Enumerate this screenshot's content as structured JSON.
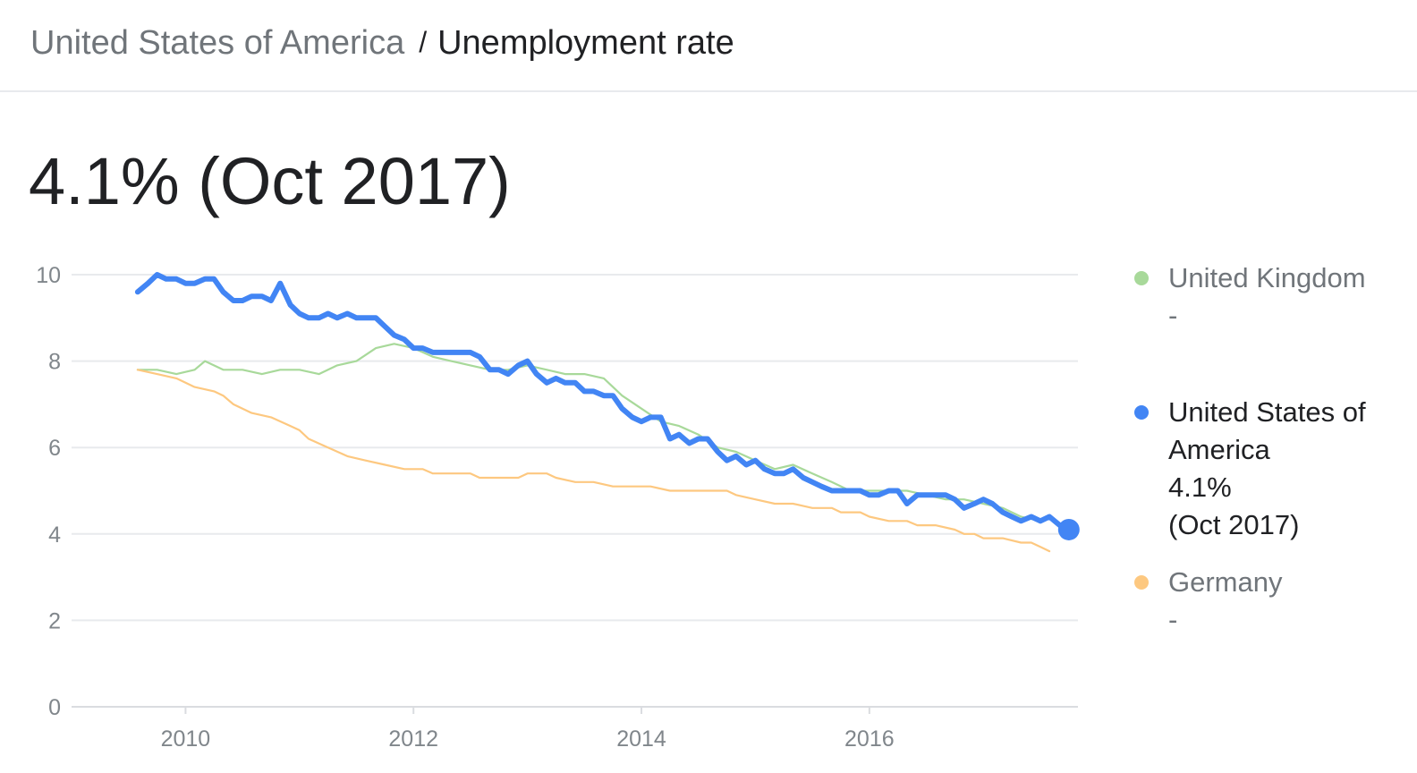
{
  "breadcrumb": {
    "parent": "United States of America",
    "separator": "/",
    "current": "Unemployment rate"
  },
  "headline": {
    "value": "4.1%",
    "date": "(Oct 2017)"
  },
  "legend": [
    {
      "name": "United Kingdom",
      "value": "-",
      "date": "",
      "color": "#a8d99a",
      "active": false
    },
    {
      "name": "United States of America",
      "value": "4.1%",
      "date": "(Oct 2017)",
      "color": "#4285f4",
      "active": true
    },
    {
      "name": "Germany",
      "value": "-",
      "date": "",
      "color": "#fdc880",
      "active": false
    }
  ],
  "chart_data": {
    "type": "line",
    "xlim": [
      2009.0,
      2017.83
    ],
    "ylim": [
      0,
      10
    ],
    "y_ticks": [
      0,
      2,
      4,
      6,
      8,
      10
    ],
    "x_ticks": [
      2010,
      2012,
      2014,
      2016
    ],
    "grid": true,
    "legend_position": "right",
    "colors": {
      "grid": "#e8eaed",
      "axis": "#dadce0",
      "tick_text": "#80868b"
    },
    "series": [
      {
        "name": "United Kingdom",
        "color": "#a8d99a",
        "points": [
          [
            2009.58,
            7.8
          ],
          [
            2009.75,
            7.8
          ],
          [
            2009.92,
            7.7
          ],
          [
            2010.08,
            7.8
          ],
          [
            2010.17,
            8.0
          ],
          [
            2010.33,
            7.8
          ],
          [
            2010.5,
            7.8
          ],
          [
            2010.67,
            7.7
          ],
          [
            2010.83,
            7.8
          ],
          [
            2011.0,
            7.8
          ],
          [
            2011.17,
            7.7
          ],
          [
            2011.33,
            7.9
          ],
          [
            2011.5,
            8.0
          ],
          [
            2011.67,
            8.3
          ],
          [
            2011.83,
            8.4
          ],
          [
            2012.0,
            8.3
          ],
          [
            2012.17,
            8.1
          ],
          [
            2012.33,
            8.0
          ],
          [
            2012.5,
            7.9
          ],
          [
            2012.67,
            7.8
          ],
          [
            2012.83,
            7.8
          ],
          [
            2013.0,
            7.9
          ],
          [
            2013.17,
            7.8
          ],
          [
            2013.33,
            7.7
          ],
          [
            2013.5,
            7.7
          ],
          [
            2013.67,
            7.6
          ],
          [
            2013.83,
            7.2
          ],
          [
            2014.0,
            6.9
          ],
          [
            2014.17,
            6.6
          ],
          [
            2014.33,
            6.5
          ],
          [
            2014.5,
            6.3
          ],
          [
            2014.67,
            6.0
          ],
          [
            2014.83,
            5.9
          ],
          [
            2015.0,
            5.7
          ],
          [
            2015.17,
            5.5
          ],
          [
            2015.33,
            5.6
          ],
          [
            2015.5,
            5.4
          ],
          [
            2015.67,
            5.2
          ],
          [
            2015.83,
            5.0
          ],
          [
            2016.0,
            5.0
          ],
          [
            2016.17,
            5.0
          ],
          [
            2016.33,
            5.0
          ],
          [
            2016.5,
            4.9
          ],
          [
            2016.67,
            4.8
          ],
          [
            2016.83,
            4.8
          ],
          [
            2017.0,
            4.7
          ],
          [
            2017.17,
            4.6
          ],
          [
            2017.33,
            4.4
          ],
          [
            2017.5,
            4.3
          ]
        ]
      },
      {
        "name": "United States of America",
        "color": "#4285f4",
        "points": [
          [
            2009.58,
            9.6
          ],
          [
            2009.67,
            9.8
          ],
          [
            2009.75,
            10.0
          ],
          [
            2009.83,
            9.9
          ],
          [
            2009.92,
            9.9
          ],
          [
            2010.0,
            9.8
          ],
          [
            2010.08,
            9.8
          ],
          [
            2010.17,
            9.9
          ],
          [
            2010.25,
            9.9
          ],
          [
            2010.33,
            9.6
          ],
          [
            2010.42,
            9.4
          ],
          [
            2010.5,
            9.4
          ],
          [
            2010.58,
            9.5
          ],
          [
            2010.67,
            9.5
          ],
          [
            2010.75,
            9.4
          ],
          [
            2010.83,
            9.8
          ],
          [
            2010.92,
            9.3
          ],
          [
            2011.0,
            9.1
          ],
          [
            2011.08,
            9.0
          ],
          [
            2011.17,
            9.0
          ],
          [
            2011.25,
            9.1
          ],
          [
            2011.33,
            9.0
          ],
          [
            2011.42,
            9.1
          ],
          [
            2011.5,
            9.0
          ],
          [
            2011.58,
            9.0
          ],
          [
            2011.67,
            9.0
          ],
          [
            2011.75,
            8.8
          ],
          [
            2011.83,
            8.6
          ],
          [
            2011.92,
            8.5
          ],
          [
            2012.0,
            8.3
          ],
          [
            2012.08,
            8.3
          ],
          [
            2012.17,
            8.2
          ],
          [
            2012.25,
            8.2
          ],
          [
            2012.33,
            8.2
          ],
          [
            2012.42,
            8.2
          ],
          [
            2012.5,
            8.2
          ],
          [
            2012.58,
            8.1
          ],
          [
            2012.67,
            7.8
          ],
          [
            2012.75,
            7.8
          ],
          [
            2012.83,
            7.7
          ],
          [
            2012.92,
            7.9
          ],
          [
            2013.0,
            8.0
          ],
          [
            2013.08,
            7.7
          ],
          [
            2013.17,
            7.5
          ],
          [
            2013.25,
            7.6
          ],
          [
            2013.33,
            7.5
          ],
          [
            2013.42,
            7.5
          ],
          [
            2013.5,
            7.3
          ],
          [
            2013.58,
            7.3
          ],
          [
            2013.67,
            7.2
          ],
          [
            2013.75,
            7.2
          ],
          [
            2013.83,
            6.9
          ],
          [
            2013.92,
            6.7
          ],
          [
            2014.0,
            6.6
          ],
          [
            2014.08,
            6.7
          ],
          [
            2014.17,
            6.7
          ],
          [
            2014.25,
            6.2
          ],
          [
            2014.33,
            6.3
          ],
          [
            2014.42,
            6.1
          ],
          [
            2014.5,
            6.2
          ],
          [
            2014.58,
            6.2
          ],
          [
            2014.67,
            5.9
          ],
          [
            2014.75,
            5.7
          ],
          [
            2014.83,
            5.8
          ],
          [
            2014.92,
            5.6
          ],
          [
            2015.0,
            5.7
          ],
          [
            2015.08,
            5.5
          ],
          [
            2015.17,
            5.4
          ],
          [
            2015.25,
            5.4
          ],
          [
            2015.33,
            5.5
          ],
          [
            2015.42,
            5.3
          ],
          [
            2015.5,
            5.2
          ],
          [
            2015.58,
            5.1
          ],
          [
            2015.67,
            5.0
          ],
          [
            2015.75,
            5.0
          ],
          [
            2015.83,
            5.0
          ],
          [
            2015.92,
            5.0
          ],
          [
            2016.0,
            4.9
          ],
          [
            2016.08,
            4.9
          ],
          [
            2016.17,
            5.0
          ],
          [
            2016.25,
            5.0
          ],
          [
            2016.33,
            4.7
          ],
          [
            2016.42,
            4.9
          ],
          [
            2016.5,
            4.9
          ],
          [
            2016.58,
            4.9
          ],
          [
            2016.67,
            4.9
          ],
          [
            2016.75,
            4.8
          ],
          [
            2016.83,
            4.6
          ],
          [
            2016.92,
            4.7
          ],
          [
            2017.0,
            4.8
          ],
          [
            2017.08,
            4.7
          ],
          [
            2017.17,
            4.5
          ],
          [
            2017.25,
            4.4
          ],
          [
            2017.33,
            4.3
          ],
          [
            2017.42,
            4.4
          ],
          [
            2017.5,
            4.3
          ],
          [
            2017.58,
            4.4
          ],
          [
            2017.67,
            4.2
          ],
          [
            2017.75,
            4.1
          ]
        ],
        "highlight": [
          2017.75,
          4.1
        ]
      },
      {
        "name": "Germany",
        "color": "#fdc880",
        "points": [
          [
            2009.58,
            7.8
          ],
          [
            2009.75,
            7.7
          ],
          [
            2009.92,
            7.6
          ],
          [
            2010.0,
            7.5
          ],
          [
            2010.08,
            7.4
          ],
          [
            2010.25,
            7.3
          ],
          [
            2010.33,
            7.2
          ],
          [
            2010.42,
            7.0
          ],
          [
            2010.58,
            6.8
          ],
          [
            2010.75,
            6.7
          ],
          [
            2010.92,
            6.5
          ],
          [
            2011.0,
            6.4
          ],
          [
            2011.08,
            6.2
          ],
          [
            2011.25,
            6.0
          ],
          [
            2011.42,
            5.8
          ],
          [
            2011.58,
            5.7
          ],
          [
            2011.75,
            5.6
          ],
          [
            2011.92,
            5.5
          ],
          [
            2012.08,
            5.5
          ],
          [
            2012.17,
            5.4
          ],
          [
            2012.33,
            5.4
          ],
          [
            2012.5,
            5.4
          ],
          [
            2012.58,
            5.3
          ],
          [
            2012.75,
            5.3
          ],
          [
            2012.92,
            5.3
          ],
          [
            2013.0,
            5.4
          ],
          [
            2013.17,
            5.4
          ],
          [
            2013.25,
            5.3
          ],
          [
            2013.42,
            5.2
          ],
          [
            2013.58,
            5.2
          ],
          [
            2013.75,
            5.1
          ],
          [
            2013.92,
            5.1
          ],
          [
            2014.08,
            5.1
          ],
          [
            2014.25,
            5.0
          ],
          [
            2014.42,
            5.0
          ],
          [
            2014.58,
            5.0
          ],
          [
            2014.75,
            5.0
          ],
          [
            2014.83,
            4.9
          ],
          [
            2015.0,
            4.8
          ],
          [
            2015.17,
            4.7
          ],
          [
            2015.33,
            4.7
          ],
          [
            2015.5,
            4.6
          ],
          [
            2015.67,
            4.6
          ],
          [
            2015.75,
            4.5
          ],
          [
            2015.92,
            4.5
          ],
          [
            2016.0,
            4.4
          ],
          [
            2016.17,
            4.3
          ],
          [
            2016.33,
            4.3
          ],
          [
            2016.42,
            4.2
          ],
          [
            2016.58,
            4.2
          ],
          [
            2016.75,
            4.1
          ],
          [
            2016.83,
            4.0
          ],
          [
            2016.92,
            4.0
          ],
          [
            2017.0,
            3.9
          ],
          [
            2017.17,
            3.9
          ],
          [
            2017.33,
            3.8
          ],
          [
            2017.42,
            3.8
          ],
          [
            2017.5,
            3.7
          ],
          [
            2017.58,
            3.6
          ]
        ]
      }
    ]
  }
}
